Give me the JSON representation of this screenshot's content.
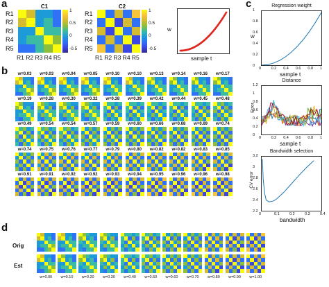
{
  "panels": {
    "a": "a",
    "b": "b",
    "c": "c",
    "d": "d"
  },
  "a": {
    "c1_title": "C1",
    "c2_title": "C2",
    "row_labels": [
      "R1",
      "R2",
      "R3",
      "R4",
      "R5"
    ],
    "col_labels": "R1 R2 R3 R4 R5",
    "colorbar_ticks": [
      "1",
      "0.5",
      "0",
      "-0.5"
    ],
    "plot_xlabel": "sample t",
    "plot_ylabel": "w"
  },
  "b": {
    "w_labels": [
      [
        "w=0.03",
        "w=0.03",
        "w=0.04",
        "w=0.05",
        "w=0.10",
        "w=0.10",
        "w=0.13",
        "w=0.14",
        "w=0.16",
        "w=0.17"
      ],
      [
        "w=0.19",
        "w=0.28",
        "w=0.30",
        "w=0.32",
        "w=0.38",
        "w=0.39",
        "w=0.42",
        "w=0.44",
        "w=0.45",
        "w=0.48"
      ],
      [
        "w=0.49",
        "w=0.54",
        "w=0.54",
        "w=0.57",
        "w=0.59",
        "w=0.60",
        "w=0.66",
        "w=0.68",
        "w=0.69",
        "w=0.74"
      ],
      [
        "w=0.74",
        "w=0.75",
        "w=0.76",
        "w=0.77",
        "w=0.79",
        "w=0.80",
        "w=0.82",
        "w=0.82",
        "w=0.83",
        "w=0.85"
      ],
      [
        "w=0.91",
        "w=0.91",
        "w=0.92",
        "w=0.92",
        "w=0.93",
        "w=0.94",
        "w=0.95",
        "w=0.96",
        "w=0.96",
        "w=0.98"
      ]
    ]
  },
  "c": {
    "top": {
      "title": "Regression weight",
      "xlabel": "sample t",
      "ylabel": "w",
      "xticks": [
        "0",
        "0.2",
        "0.4",
        "0.6",
        "0.8",
        "1"
      ],
      "yticks": [
        "1",
        "0.8",
        "0.6",
        "0.4",
        "0.2",
        "0"
      ]
    },
    "mid": {
      "title": "Distance",
      "xlabel": "sample t",
      "ylabel": "Error",
      "xticks": [
        "0",
        "0.2",
        "0.4",
        "0.6",
        "0.8",
        "1"
      ],
      "yticks": [
        "1.2",
        "1",
        "0.8",
        "0.6",
        "0.4",
        "0.2",
        "0"
      ]
    },
    "bot": {
      "title": "Bandwidth selection",
      "xlabel": "bandwidth",
      "ylabel": "CV error",
      "xticks": [
        "0",
        "0.1",
        "0.2",
        "0.3",
        "0.4"
      ],
      "yticks": [
        "3.2",
        "3",
        "2.8",
        "2.6",
        "2.4",
        "2.2"
      ]
    }
  },
  "d": {
    "row_labels": [
      "Orig",
      "Est"
    ],
    "w_labels": [
      "w=0.00",
      "w=0.10",
      "w=0.20",
      "w=0.30",
      "w=0.40",
      "w=0.50",
      "w=0.60",
      "w=0.70",
      "w=0.80",
      "w=0.90",
      "w=1.00"
    ]
  },
  "chart_data": [
    {
      "type": "line",
      "title": "Regression weight",
      "xlabel": "sample t",
      "ylabel": "w",
      "x": [
        0,
        0.1,
        0.2,
        0.3,
        0.4,
        0.5,
        0.6,
        0.7,
        0.8,
        0.9,
        1.0
      ],
      "y": [
        0,
        0.01,
        0.04,
        0.09,
        0.16,
        0.25,
        0.36,
        0.49,
        0.64,
        0.81,
        1.0
      ],
      "xlim": [
        0,
        1
      ],
      "ylim": [
        0,
        1
      ]
    },
    {
      "type": "line",
      "title": "Bandwidth selection",
      "xlabel": "bandwidth",
      "ylabel": "CV error",
      "x": [
        0.005,
        0.01,
        0.02,
        0.03,
        0.05,
        0.08,
        0.1,
        0.15,
        0.2,
        0.25,
        0.3,
        0.35
      ],
      "y": [
        3.25,
        2.85,
        2.55,
        2.42,
        2.38,
        2.4,
        2.44,
        2.58,
        2.75,
        2.92,
        3.08,
        3.22
      ],
      "xlim": [
        0,
        0.4
      ],
      "ylim": [
        2.2,
        3.3
      ]
    }
  ]
}
